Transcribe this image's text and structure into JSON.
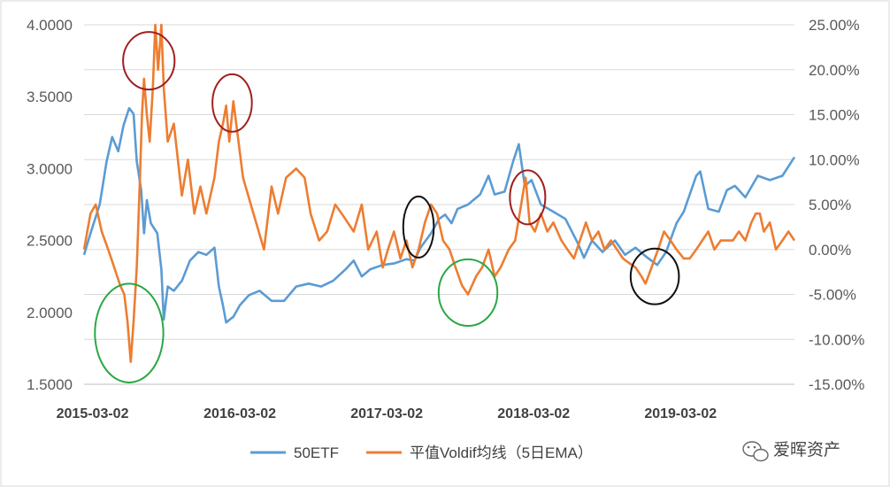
{
  "chart_data": {
    "type": "line",
    "x_ticks": [
      "2015-03-02",
      "2016-03-02",
      "2017-03-02",
      "2018-03-02",
      "2019-03-02"
    ],
    "x_range": [
      "2015-02-09",
      "2019-12-10"
    ],
    "y_left": {
      "range": [
        1.5,
        4.0
      ],
      "ticks": [
        "1.5000",
        "2.0000",
        "2.5000",
        "3.0000",
        "3.5000",
        "4.0000"
      ]
    },
    "y_right": {
      "range": [
        -15,
        25
      ],
      "ticks": [
        "-15.00%",
        "-10.00%",
        "-5.00%",
        "0.00%",
        "5.00%",
        "10.00%",
        "15.00%",
        "20.00%",
        "25.00%"
      ]
    },
    "grid": true,
    "legend_position": "bottom",
    "series": [
      {
        "name": "50ETF",
        "axis": "left",
        "color": "#5b9bd5",
        "points": [
          [
            "2015-02-09",
            2.4
          ],
          [
            "2015-02-25",
            2.55
          ],
          [
            "2015-03-20",
            2.75
          ],
          [
            "2015-04-06",
            3.05
          ],
          [
            "2015-04-20",
            3.22
          ],
          [
            "2015-05-05",
            3.12
          ],
          [
            "2015-05-18",
            3.3
          ],
          [
            "2015-06-01",
            3.42
          ],
          [
            "2015-06-12",
            3.38
          ],
          [
            "2015-06-20",
            3.05
          ],
          [
            "2015-07-01",
            2.85
          ],
          [
            "2015-07-08",
            2.55
          ],
          [
            "2015-07-15",
            2.78
          ],
          [
            "2015-07-25",
            2.62
          ],
          [
            "2015-08-10",
            2.55
          ],
          [
            "2015-08-20",
            2.3
          ],
          [
            "2015-08-26",
            1.95
          ],
          [
            "2015-09-05",
            2.18
          ],
          [
            "2015-09-20",
            2.15
          ],
          [
            "2015-10-10",
            2.22
          ],
          [
            "2015-10-30",
            2.36
          ],
          [
            "2015-11-20",
            2.42
          ],
          [
            "2015-12-10",
            2.4
          ],
          [
            "2015-12-30",
            2.45
          ],
          [
            "2016-01-10",
            2.18
          ],
          [
            "2016-01-20",
            2.05
          ],
          [
            "2016-01-28",
            1.93
          ],
          [
            "2016-02-15",
            1.97
          ],
          [
            "2016-03-02",
            2.05
          ],
          [
            "2016-03-25",
            2.12
          ],
          [
            "2016-04-20",
            2.15
          ],
          [
            "2016-05-20",
            2.08
          ],
          [
            "2016-06-20",
            2.08
          ],
          [
            "2016-07-20",
            2.18
          ],
          [
            "2016-08-20",
            2.2
          ],
          [
            "2016-09-20",
            2.18
          ],
          [
            "2016-10-20",
            2.22
          ],
          [
            "2016-11-20",
            2.3
          ],
          [
            "2016-12-10",
            2.36
          ],
          [
            "2016-12-30",
            2.25
          ],
          [
            "2017-01-20",
            2.3
          ],
          [
            "2017-02-20",
            2.33
          ],
          [
            "2017-03-20",
            2.34
          ],
          [
            "2017-04-20",
            2.37
          ],
          [
            "2017-05-10",
            2.36
          ],
          [
            "2017-05-25",
            2.45
          ],
          [
            "2017-06-20",
            2.55
          ],
          [
            "2017-07-10",
            2.65
          ],
          [
            "2017-07-25",
            2.68
          ],
          [
            "2017-08-10",
            2.62
          ],
          [
            "2017-08-25",
            2.72
          ],
          [
            "2017-09-20",
            2.75
          ],
          [
            "2017-10-20",
            2.82
          ],
          [
            "2017-11-10",
            2.95
          ],
          [
            "2017-11-25",
            2.82
          ],
          [
            "2017-12-20",
            2.84
          ],
          [
            "2018-01-10",
            3.05
          ],
          [
            "2018-01-24",
            3.17
          ],
          [
            "2018-02-08",
            2.88
          ],
          [
            "2018-02-25",
            2.92
          ],
          [
            "2018-03-20",
            2.75
          ],
          [
            "2018-04-20",
            2.7
          ],
          [
            "2018-05-20",
            2.65
          ],
          [
            "2018-06-20",
            2.48
          ],
          [
            "2018-07-05",
            2.38
          ],
          [
            "2018-07-25",
            2.5
          ],
          [
            "2018-08-20",
            2.42
          ],
          [
            "2018-09-20",
            2.5
          ],
          [
            "2018-10-15",
            2.4
          ],
          [
            "2018-11-10",
            2.45
          ],
          [
            "2018-12-10",
            2.38
          ],
          [
            "2019-01-03",
            2.33
          ],
          [
            "2019-01-25",
            2.42
          ],
          [
            "2019-02-20",
            2.62
          ],
          [
            "2019-03-10",
            2.7
          ],
          [
            "2019-04-10",
            2.95
          ],
          [
            "2019-04-20",
            2.98
          ],
          [
            "2019-05-10",
            2.72
          ],
          [
            "2019-06-05",
            2.7
          ],
          [
            "2019-06-25",
            2.85
          ],
          [
            "2019-07-15",
            2.88
          ],
          [
            "2019-08-10",
            2.8
          ],
          [
            "2019-09-10",
            2.95
          ],
          [
            "2019-10-10",
            2.92
          ],
          [
            "2019-11-10",
            2.95
          ],
          [
            "2019-12-10",
            3.08
          ]
        ]
      },
      {
        "name": "平值Voldif均线（5日EMA）",
        "axis": "right",
        "color": "#ed7d31",
        "points": [
          [
            "2015-02-09",
            0.0
          ],
          [
            "2015-02-25",
            4.0
          ],
          [
            "2015-03-10",
            5.0
          ],
          [
            "2015-03-25",
            2.0
          ],
          [
            "2015-04-10",
            0.0
          ],
          [
            "2015-04-25",
            -2.0
          ],
          [
            "2015-05-10",
            -4.0
          ],
          [
            "2015-05-20",
            -5.0
          ],
          [
            "2015-05-28",
            -8.0
          ],
          [
            "2015-06-05",
            -12.5
          ],
          [
            "2015-06-12",
            -8.0
          ],
          [
            "2015-06-20",
            -2.0
          ],
          [
            "2015-06-28",
            8.0
          ],
          [
            "2015-07-03",
            15.0
          ],
          [
            "2015-07-08",
            19.0
          ],
          [
            "2015-07-15",
            15.0
          ],
          [
            "2015-07-22",
            12.0
          ],
          [
            "2015-07-30",
            18.0
          ],
          [
            "2015-08-05",
            25.0
          ],
          [
            "2015-08-12",
            20.0
          ],
          [
            "2015-08-20",
            25.0
          ],
          [
            "2015-08-26",
            18.0
          ],
          [
            "2015-09-05",
            12.0
          ],
          [
            "2015-09-20",
            14.0
          ],
          [
            "2015-10-10",
            6.0
          ],
          [
            "2015-10-25",
            10.0
          ],
          [
            "2015-11-10",
            4.0
          ],
          [
            "2015-11-25",
            7.0
          ],
          [
            "2015-12-10",
            4.0
          ],
          [
            "2015-12-30",
            8.0
          ],
          [
            "2016-01-10",
            12.0
          ],
          [
            "2016-01-20",
            14.0
          ],
          [
            "2016-01-28",
            16.0
          ],
          [
            "2016-02-05",
            12.0
          ],
          [
            "2016-02-15",
            16.5
          ],
          [
            "2016-02-25",
            13.0
          ],
          [
            "2016-03-10",
            8.0
          ],
          [
            "2016-04-05",
            4.0
          ],
          [
            "2016-05-01",
            0.0
          ],
          [
            "2016-05-20",
            7.0
          ],
          [
            "2016-06-05",
            4.0
          ],
          [
            "2016-06-25",
            8.0
          ],
          [
            "2016-07-20",
            9.0
          ],
          [
            "2016-08-10",
            8.0
          ],
          [
            "2016-08-25",
            4.0
          ],
          [
            "2016-09-15",
            1.0
          ],
          [
            "2016-10-05",
            2.0
          ],
          [
            "2016-10-25",
            5.0
          ],
          [
            "2016-11-10",
            4.0
          ],
          [
            "2016-11-25",
            3.0
          ],
          [
            "2016-12-10",
            2.0
          ],
          [
            "2016-12-30",
            5.0
          ],
          [
            "2017-01-15",
            0.0
          ],
          [
            "2017-02-05",
            2.0
          ],
          [
            "2017-02-20",
            -2.0
          ],
          [
            "2017-03-05",
            0.0
          ],
          [
            "2017-03-20",
            2.0
          ],
          [
            "2017-04-05",
            -1.0
          ],
          [
            "2017-04-20",
            1.0
          ],
          [
            "2017-05-05",
            -2.0
          ],
          [
            "2017-05-20",
            0.0
          ],
          [
            "2017-06-05",
            3.0
          ],
          [
            "2017-06-20",
            5.0
          ],
          [
            "2017-07-05",
            4.0
          ],
          [
            "2017-07-20",
            1.0
          ],
          [
            "2017-08-05",
            0.0
          ],
          [
            "2017-08-20",
            -2.0
          ],
          [
            "2017-09-05",
            -4.0
          ],
          [
            "2017-09-20",
            -5.0
          ],
          [
            "2017-10-10",
            -3.0
          ],
          [
            "2017-10-25",
            -2.0
          ],
          [
            "2017-11-10",
            0.0
          ],
          [
            "2017-11-25",
            -3.0
          ],
          [
            "2017-12-10",
            -2.0
          ],
          [
            "2017-12-30",
            0.0
          ],
          [
            "2018-01-15",
            1.0
          ],
          [
            "2018-01-30",
            5.0
          ],
          [
            "2018-02-10",
            8.0
          ],
          [
            "2018-02-20",
            3.0
          ],
          [
            "2018-03-05",
            2.0
          ],
          [
            "2018-03-20",
            4.0
          ],
          [
            "2018-04-05",
            2.0
          ],
          [
            "2018-04-20",
            3.0
          ],
          [
            "2018-05-10",
            1.0
          ],
          [
            "2018-05-25",
            0.0
          ],
          [
            "2018-06-10",
            -1.0
          ],
          [
            "2018-06-25",
            1.0
          ],
          [
            "2018-07-10",
            3.0
          ],
          [
            "2018-07-25",
            1.0
          ],
          [
            "2018-08-10",
            2.0
          ],
          [
            "2018-08-25",
            0.0
          ],
          [
            "2018-09-10",
            1.0
          ],
          [
            "2018-09-25",
            0.0
          ],
          [
            "2018-10-10",
            -1.0
          ],
          [
            "2018-10-25",
            -1.5
          ],
          [
            "2018-11-10",
            -2.0
          ],
          [
            "2018-11-25",
            -3.0
          ],
          [
            "2018-12-05",
            -3.8
          ],
          [
            "2018-12-20",
            -2.0
          ],
          [
            "2019-01-05",
            0.0
          ],
          [
            "2019-01-20",
            2.0
          ],
          [
            "2019-02-05",
            1.0
          ],
          [
            "2019-02-20",
            0.0
          ],
          [
            "2019-03-10",
            -1.0
          ],
          [
            "2019-03-25",
            -1.0
          ],
          [
            "2019-04-10",
            0.0
          ],
          [
            "2019-04-25",
            1.0
          ],
          [
            "2019-05-10",
            2.0
          ],
          [
            "2019-05-25",
            0.0
          ],
          [
            "2019-06-10",
            1.0
          ],
          [
            "2019-06-25",
            1.0
          ],
          [
            "2019-07-10",
            1.0
          ],
          [
            "2019-07-25",
            2.0
          ],
          [
            "2019-08-10",
            1.0
          ],
          [
            "2019-08-25",
            3.0
          ],
          [
            "2019-09-05",
            4.0
          ],
          [
            "2019-09-15",
            4.0
          ],
          [
            "2019-09-25",
            2.0
          ],
          [
            "2019-10-10",
            3.0
          ],
          [
            "2019-10-25",
            0.0
          ],
          [
            "2019-11-10",
            1.0
          ],
          [
            "2019-11-25",
            2.0
          ],
          [
            "2019-12-10",
            1.0
          ]
        ]
      }
    ],
    "annotations": [
      {
        "shape": "ellipse",
        "color": "#a01f1f",
        "x": "2015-07-20",
        "y_right": 21.0,
        "rx_days": 64,
        "ry_right": 3.2
      },
      {
        "shape": "ellipse",
        "color": "#a01f1f",
        "x": "2016-02-12",
        "y_right": 16.3,
        "rx_days": 49,
        "ry_right": 3.2
      },
      {
        "shape": "ellipse",
        "color": "#a01f1f",
        "x": "2018-02-15",
        "y_right": 5.8,
        "rx_days": 44,
        "ry_right": 3.0
      },
      {
        "shape": "ellipse",
        "color": "#2aa845",
        "x": "2015-06-01",
        "y_right": -9.3,
        "rx_days": 85,
        "ry_right": 5.5
      },
      {
        "shape": "ellipse",
        "color": "#2aa845",
        "x": "2017-09-20",
        "y_right": -4.8,
        "rx_days": 73,
        "ry_right": 3.7
      },
      {
        "shape": "ellipse",
        "color": "#111111",
        "x": "2017-05-20",
        "y_right": 2.5,
        "rx_days": 38,
        "ry_right": 3.4
      },
      {
        "shape": "ellipse",
        "color": "#111111",
        "x": "2018-12-28",
        "y_right": -3.0,
        "rx_days": 60,
        "ry_right": 3.1
      }
    ]
  },
  "watermark": {
    "text": "爱晖资产",
    "icon": "wechat-bubble-icon"
  }
}
